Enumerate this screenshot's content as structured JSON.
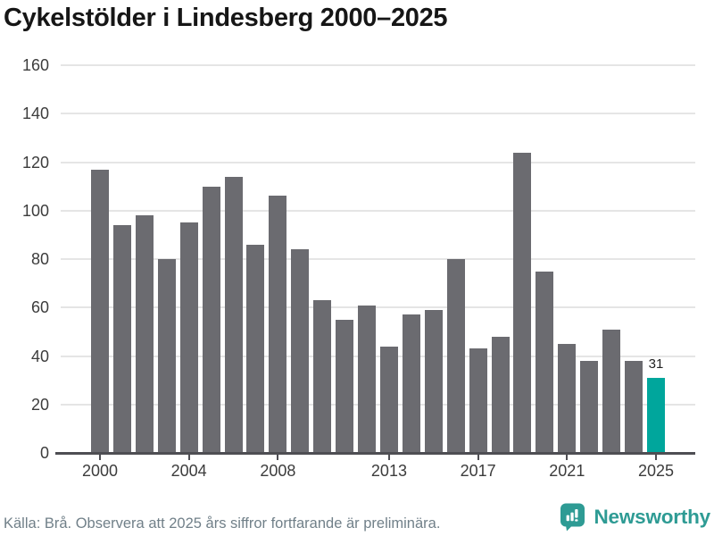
{
  "title": "Cykelstölder i Lindesberg 2000–2025",
  "chart_data": {
    "type": "bar",
    "title": "Cykelstölder i Lindesberg 2000–2025",
    "categories": [
      2000,
      2001,
      2002,
      2003,
      2004,
      2005,
      2006,
      2007,
      2008,
      2009,
      2010,
      2011,
      2012,
      2013,
      2014,
      2015,
      2016,
      2017,
      2018,
      2019,
      2020,
      2021,
      2022,
      2023,
      2024,
      2025
    ],
    "values": [
      117,
      94,
      98,
      80,
      95,
      110,
      114,
      86,
      106,
      84,
      63,
      55,
      61,
      44,
      57,
      59,
      80,
      43,
      48,
      124,
      75,
      45,
      38,
      51,
      38,
      31
    ],
    "xlabel": "",
    "ylabel": "",
    "ylim": [
      0,
      160
    ],
    "yticks": [
      0,
      20,
      40,
      60,
      80,
      100,
      120,
      140,
      160
    ],
    "xticks": [
      2000,
      2004,
      2008,
      2013,
      2017,
      2021,
      2025
    ],
    "grid": true,
    "legend_position": "none",
    "highlight_category": 2025,
    "annotation": {
      "category": 2025,
      "text": "31"
    },
    "bar_color": "#6b6b70",
    "highlight_color": "#00a69c"
  },
  "footer": {
    "source_text": "Källa: Brå. Observera att 2025 års siffror fortfarande är preliminära.",
    "brand": "Newsworthy"
  },
  "colors": {
    "background": "#ffffff",
    "title_text": "#161616",
    "axis_text": "#3c3c3c",
    "gridline": "#e5e5e5",
    "axis_line": "#4e4e53",
    "footer_text": "#718089",
    "brand_teal": "#2e9b94"
  }
}
